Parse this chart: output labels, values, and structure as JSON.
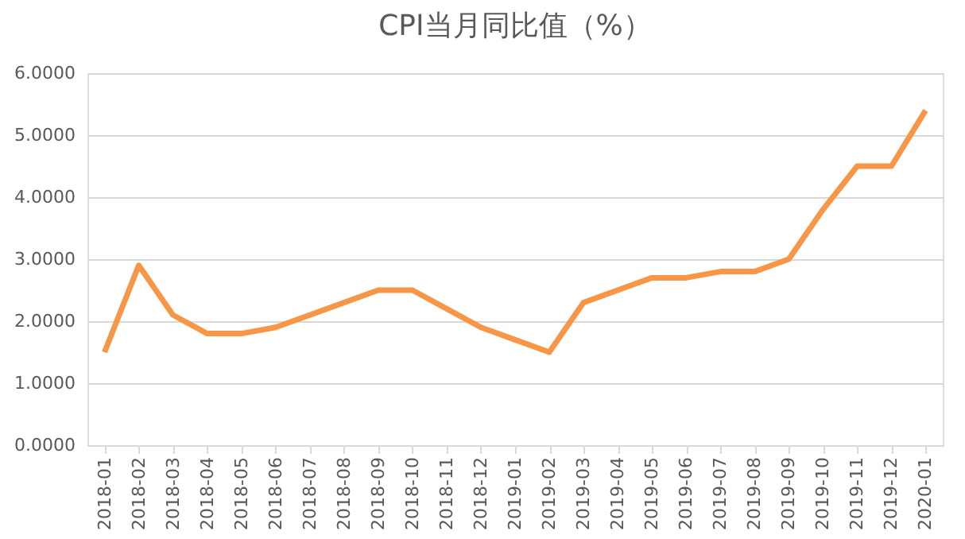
{
  "chart_data": {
    "type": "line",
    "title": "CPI当月同比值（%）",
    "categories": [
      "2018-01",
      "2018-02",
      "2018-03",
      "2018-04",
      "2018-05",
      "2018-06",
      "2018-07",
      "2018-08",
      "2018-09",
      "2018-10",
      "2018-11",
      "2018-12",
      "2019-01",
      "2019-02",
      "2019-03",
      "2019-04",
      "2019-05",
      "2019-06",
      "2019-07",
      "2019-08",
      "2019-09",
      "2019-10",
      "2019-11",
      "2019-12",
      "2020-01"
    ],
    "series": [
      {
        "color": "#f79646",
        "values": [
          1.5,
          2.9,
          2.1,
          1.8,
          1.8,
          1.9,
          2.1,
          2.3,
          2.5,
          2.5,
          2.2,
          1.9,
          1.7,
          1.5,
          2.3,
          2.5,
          2.7,
          2.7,
          2.8,
          2.8,
          3.0,
          3.8,
          4.5,
          4.5,
          5.4
        ]
      }
    ],
    "ylim": [
      0,
      6
    ],
    "yticks": [
      {
        "value": 0,
        "label": "0.0000"
      },
      {
        "value": 1,
        "label": "1.0000"
      },
      {
        "value": 2,
        "label": "2.0000"
      },
      {
        "value": 3,
        "label": "3.0000"
      },
      {
        "value": 4,
        "label": "4.0000"
      },
      {
        "value": 5,
        "label": "5.0000"
      },
      {
        "value": 6,
        "label": "6.0000"
      }
    ],
    "grid": "y",
    "line_style": "solid",
    "marker": "none"
  }
}
